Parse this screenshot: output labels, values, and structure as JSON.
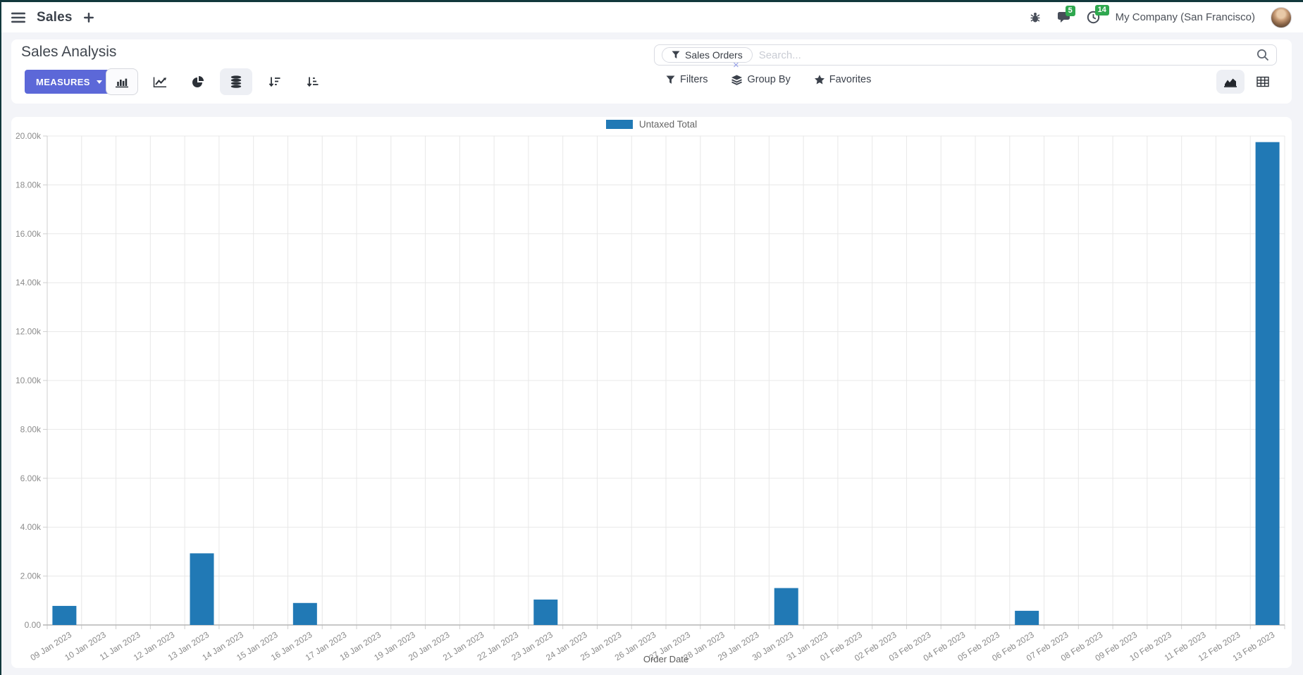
{
  "navbar": {
    "app_label": "Sales",
    "messages_badge": "5",
    "activities_badge": "14",
    "company": "My Company (San Francisco)"
  },
  "control_panel": {
    "title": "Sales Analysis",
    "measures_label": "MEASURES",
    "search": {
      "facet_label": "Sales Orders",
      "placeholder": "Search...",
      "remove_glyph": "×"
    },
    "menus": {
      "filters": "Filters",
      "group_by": "Group By",
      "favorites": "Favorites"
    }
  },
  "chart_data": {
    "type": "bar",
    "title": "",
    "xlabel": "Order Date",
    "ylabel": "",
    "ylim": [
      0,
      20000
    ],
    "grid": true,
    "legend_position": "top",
    "y_tick_labels": [
      "0.00",
      "2.00k",
      "4.00k",
      "6.00k",
      "8.00k",
      "10.00k",
      "12.00k",
      "14.00k",
      "16.00k",
      "18.00k",
      "20.00k"
    ],
    "categories": [
      "09 Jan 2023",
      "10 Jan 2023",
      "11 Jan 2023",
      "12 Jan 2023",
      "13 Jan 2023",
      "14 Jan 2023",
      "15 Jan 2023",
      "16 Jan 2023",
      "17 Jan 2023",
      "18 Jan 2023",
      "19 Jan 2023",
      "20 Jan 2023",
      "21 Jan 2023",
      "22 Jan 2023",
      "23 Jan 2023",
      "24 Jan 2023",
      "25 Jan 2023",
      "26 Jan 2023",
      "27 Jan 2023",
      "28 Jan 2023",
      "29 Jan 2023",
      "30 Jan 2023",
      "31 Jan 2023",
      "01 Feb 2023",
      "02 Feb 2023",
      "03 Feb 2023",
      "04 Feb 2023",
      "05 Feb 2023",
      "06 Feb 2023",
      "07 Feb 2023",
      "08 Feb 2023",
      "09 Feb 2023",
      "10 Feb 2023",
      "11 Feb 2023",
      "12 Feb 2023",
      "13 Feb 2023"
    ],
    "series": [
      {
        "name": "Untaxed Total",
        "color": "#2179b5",
        "values": [
          780,
          0,
          0,
          0,
          2930,
          0,
          0,
          900,
          0,
          0,
          0,
          0,
          0,
          0,
          1040,
          0,
          0,
          0,
          0,
          0,
          0,
          1510,
          0,
          0,
          0,
          0,
          0,
          0,
          580,
          0,
          0,
          0,
          0,
          0,
          0,
          19750
        ]
      }
    ]
  },
  "colors": {
    "accent": "#5c68d8",
    "badge": "#2fa84f",
    "bar": "#2179b5",
    "frame": "#12383c"
  }
}
